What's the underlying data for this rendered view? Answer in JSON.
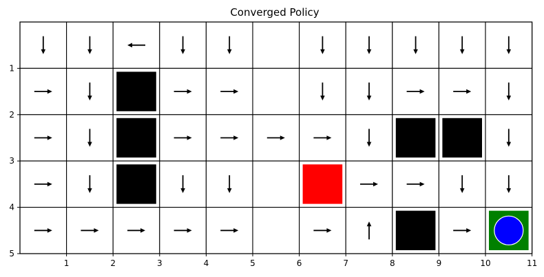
{
  "title": "Converged Policy",
  "grid": {
    "cols": 11,
    "rows": 5
  },
  "x_ticks": [
    "1",
    "2",
    "3",
    "4",
    "5",
    "6",
    "7",
    "8",
    "9",
    "10",
    "11"
  ],
  "y_ticks": [
    "1",
    "2",
    "3",
    "4",
    "5"
  ],
  "colors": {
    "wall": "#000000",
    "hazard": "#ff0000",
    "goal": "#008000",
    "agent": "#0000ff",
    "grid": "#000000"
  },
  "policy": [
    [
      "down",
      "down",
      "left",
      "down",
      "down",
      "",
      "down",
      "down",
      "down",
      "down",
      "down"
    ],
    [
      "right",
      "down",
      "",
      "right",
      "right",
      "",
      "down",
      "down",
      "right",
      "right",
      "down"
    ],
    [
      "right",
      "down",
      "",
      "right",
      "right",
      "right",
      "right",
      "down",
      "",
      "",
      "down"
    ],
    [
      "right",
      "down",
      "",
      "down",
      "down",
      "",
      "",
      "right",
      "right",
      "down",
      "down"
    ],
    [
      "right",
      "right",
      "right",
      "right",
      "right",
      "",
      "right",
      "up",
      "",
      "right",
      ""
    ]
  ],
  "walls": [
    [
      2,
      1
    ],
    [
      2,
      2
    ],
    [
      8,
      2
    ],
    [
      9,
      2
    ],
    [
      2,
      3
    ],
    [
      8,
      4
    ]
  ],
  "hazards": [
    [
      6,
      3
    ]
  ],
  "goal": [
    10,
    4
  ],
  "agent": [
    10,
    4
  ]
}
